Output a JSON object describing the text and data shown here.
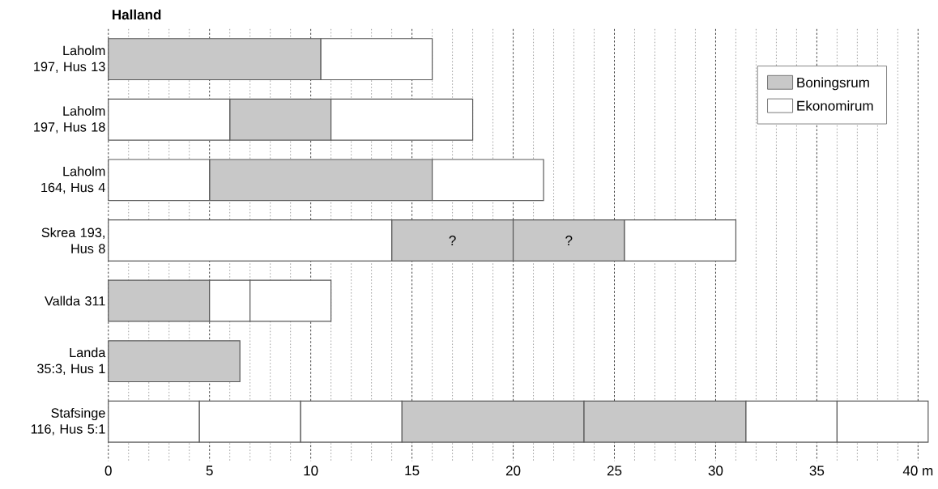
{
  "chart_data": {
    "type": "bar",
    "orientation": "horizontal",
    "title": "Halland",
    "categories": [
      "Laholm 197, Hus 13",
      "Laholm 197, Hus 18",
      "Laholm 164, Hus 4",
      "Skrea 193, Hus 8",
      "Vallda 311",
      "Landa 35:3, Hus 1",
      "Stafsinge 116, Hus 5:1"
    ],
    "series": [
      {
        "name": "Boningsrum",
        "color": "#c8c8c8",
        "base": [
          0,
          6,
          5,
          14,
          0,
          0,
          14.5
        ],
        "values": [
          10.5,
          5,
          11,
          6,
          5,
          6.5,
          9
        ]
      },
      {
        "color": "#c8c8c8",
        "base": [
          null,
          null,
          null,
          20,
          null,
          null,
          23.5
        ],
        "values": [
          null,
          null,
          null,
          5.5,
          null,
          null,
          8
        ]
      },
      {
        "name": "Ekonomirum",
        "color": "#ffffff",
        "base": [
          10.5,
          0,
          0,
          0,
          5,
          null,
          0
        ],
        "values": [
          5.5,
          6,
          5,
          14,
          2,
          null,
          4.5
        ]
      },
      {
        "color": "#ffffff",
        "base": [
          null,
          11,
          16,
          25.5,
          7,
          null,
          4.5
        ],
        "values": [
          null,
          7,
          5.5,
          5.5,
          4,
          null,
          5
        ]
      },
      {
        "color": "#ffffff",
        "base": [
          null,
          null,
          null,
          null,
          null,
          null,
          9.5
        ],
        "values": [
          null,
          null,
          null,
          null,
          null,
          null,
          5
        ]
      },
      {
        "color": "#ffffff",
        "base": [
          null,
          null,
          null,
          null,
          null,
          null,
          31.5
        ],
        "values": [
          null,
          null,
          null,
          null,
          null,
          null,
          4.5
        ]
      },
      {
        "color": "#ffffff",
        "base": [
          null,
          null,
          null,
          null,
          null,
          null,
          36
        ],
        "values": [
          null,
          null,
          null,
          null,
          null,
          null,
          4.5
        ]
      }
    ],
    "annotations": [
      {
        "text": "?",
        "x": 17,
        "y": "Skrea 193, Hus 8"
      },
      {
        "text": "?",
        "x": 22.75,
        "y": "Skrea 193, Hus 8"
      }
    ],
    "xlim": [
      0,
      40.7
    ],
    "xticks": [
      0,
      5,
      10,
      15,
      20,
      25,
      30,
      35,
      {
        "value": 40,
        "label": "40 m"
      }
    ],
    "grid": "x",
    "legend": "top right"
  }
}
